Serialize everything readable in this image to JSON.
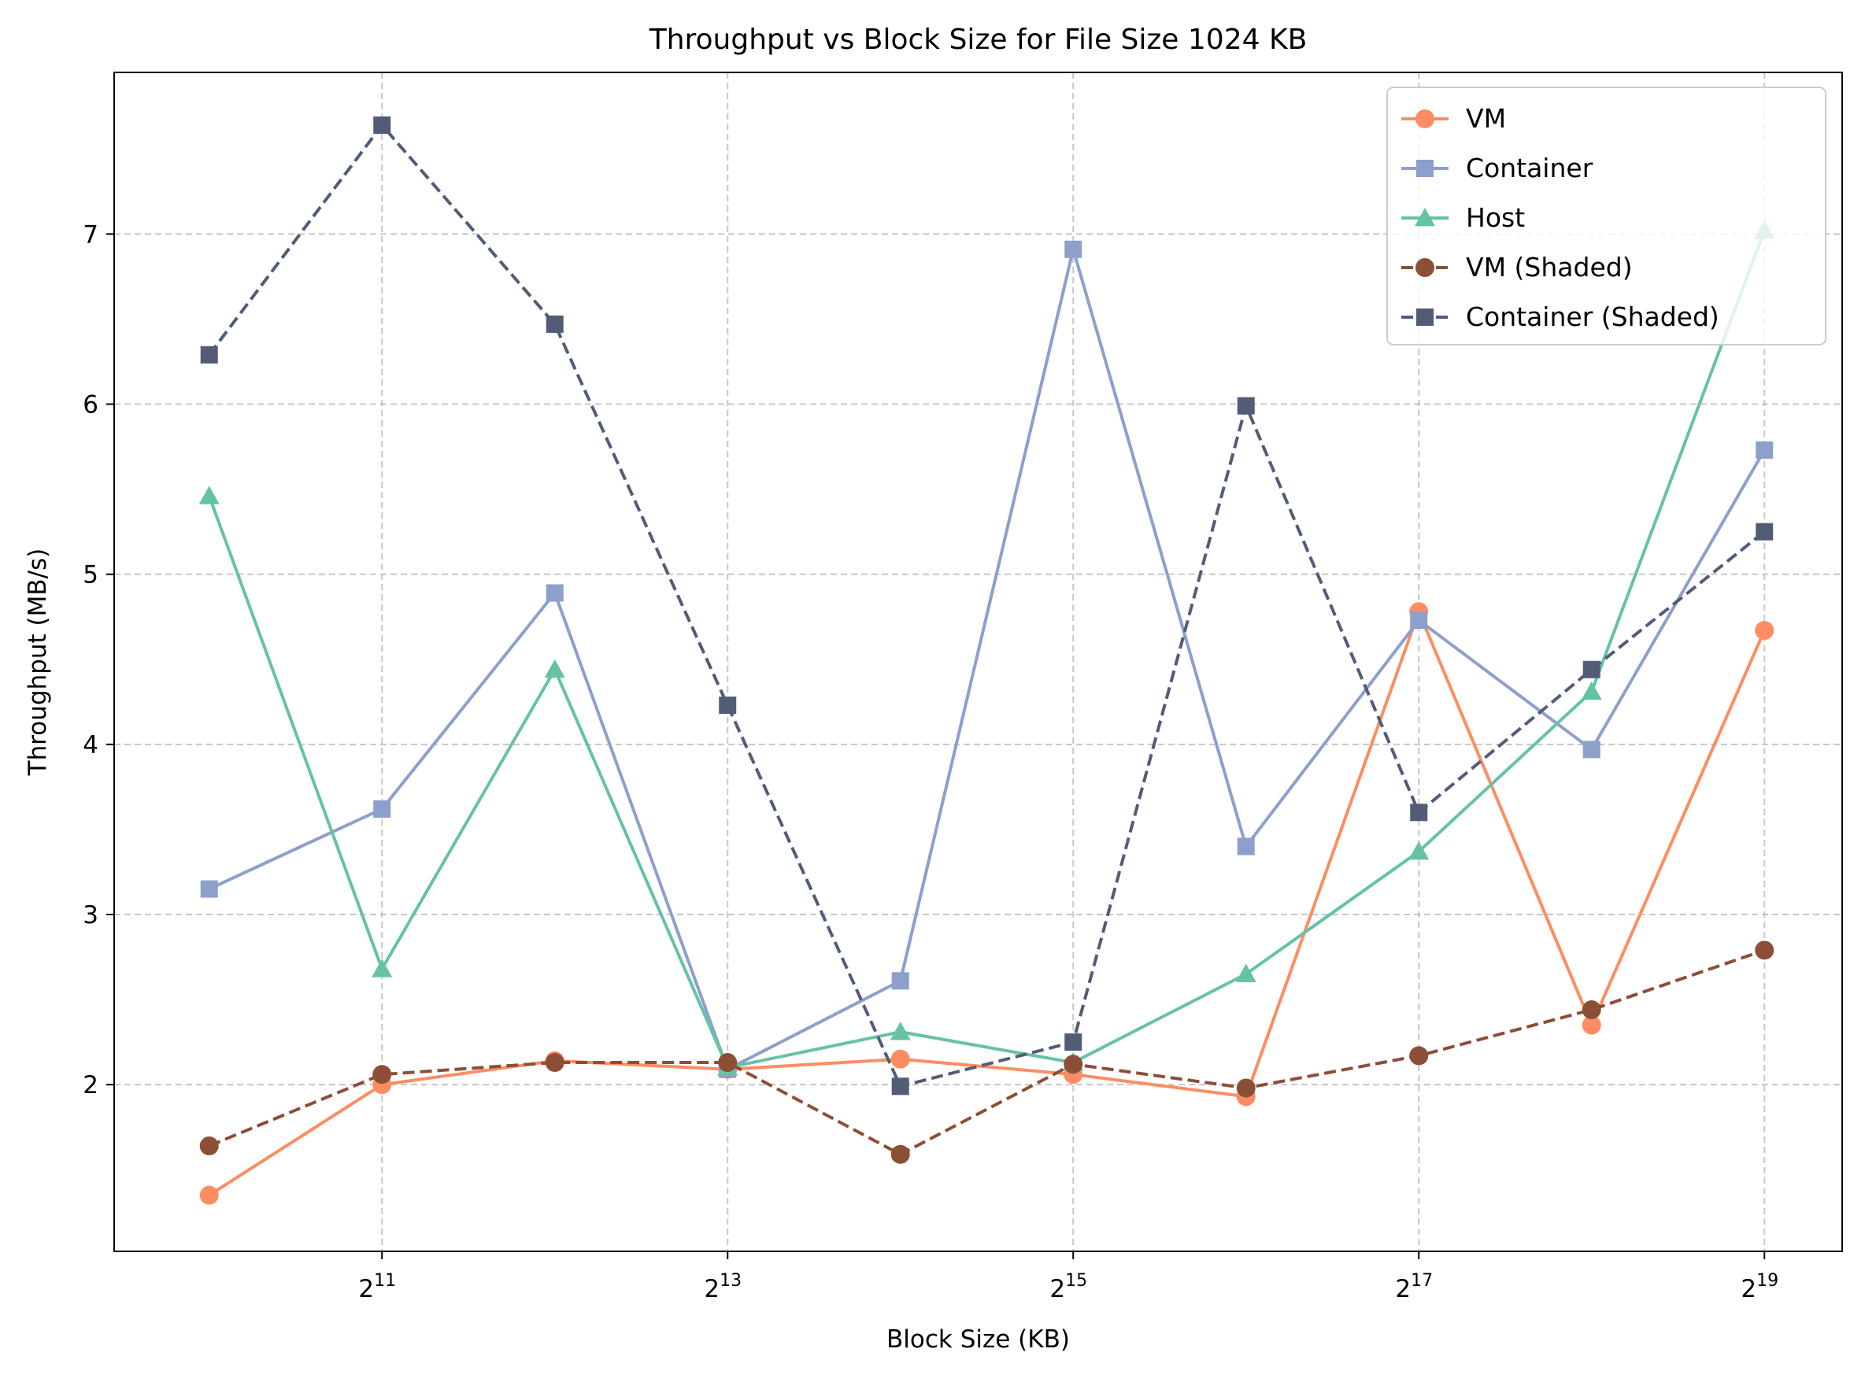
{
  "chart_data": {
    "type": "line",
    "title": "Throughput vs Block Size for File Size 1024 KB",
    "xlabel": "Block Size (KB)",
    "ylabel": "Throughput (MB/s)",
    "x_scale": "log2",
    "x": [
      1024,
      2048,
      4096,
      8192,
      16384,
      32768,
      65536,
      131072,
      262144,
      524288
    ],
    "x_ticks": [
      {
        "value": 2048,
        "base": "2",
        "exp": "11"
      },
      {
        "value": 8192,
        "base": "2",
        "exp": "13"
      },
      {
        "value": 32768,
        "base": "2",
        "exp": "15"
      },
      {
        "value": 131072,
        "base": "2",
        "exp": "17"
      },
      {
        "value": 524288,
        "base": "2",
        "exp": "19"
      }
    ],
    "y_ticks": [
      2,
      3,
      4,
      5,
      6,
      7
    ],
    "xlim_exp": [
      9.45,
      19.45
    ],
    "ylim": [
      1.02,
      7.95
    ],
    "grid": true,
    "legend_position": "top-right",
    "series": [
      {
        "name": "VM",
        "color": "#fc8d62",
        "linestyle": "solid",
        "marker": "circle",
        "values": [
          1.35,
          2.0,
          2.14,
          2.09,
          2.15,
          2.06,
          1.93,
          4.78,
          2.35,
          4.67
        ]
      },
      {
        "name": "Container",
        "color": "#8da0cb",
        "linestyle": "solid",
        "marker": "square",
        "values": [
          3.15,
          3.62,
          4.89,
          2.09,
          2.61,
          6.91,
          3.4,
          4.73,
          3.97,
          5.73
        ]
      },
      {
        "name": "Host",
        "color": "#66c2a5",
        "linestyle": "solid",
        "marker": "triangle",
        "values": [
          5.46,
          2.68,
          4.44,
          2.1,
          2.31,
          2.13,
          2.65,
          3.37,
          4.31,
          7.02
        ]
      },
      {
        "name": "VM (Shaded)",
        "color": "#8c4f36",
        "linestyle": "dashed",
        "marker": "circle",
        "values": [
          1.64,
          2.06,
          2.13,
          2.13,
          1.59,
          2.12,
          1.98,
          2.17,
          2.44,
          2.79
        ]
      },
      {
        "name": "Container (Shaded)",
        "color": "#525c77",
        "linestyle": "dashed",
        "marker": "square",
        "values": [
          6.29,
          7.64,
          6.47,
          4.23,
          1.99,
          2.25,
          5.99,
          3.6,
          4.44,
          5.25
        ]
      }
    ]
  }
}
